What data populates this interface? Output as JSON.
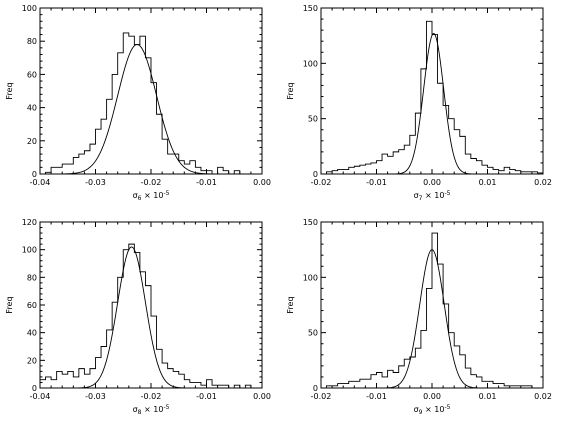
{
  "chart_data": [
    {
      "type": "histogram",
      "xlabel_symbol": "σ",
      "xlabel_sub": "6",
      "xlabel_rest": " × 10",
      "xlabel_exp": "-5",
      "ylabel": "Freq",
      "xlim": [
        -0.04,
        0.0
      ],
      "ylim": [
        0,
        100
      ],
      "xticks": [
        -0.04,
        -0.03,
        -0.02,
        -0.01,
        0.0
      ],
      "xtick_labels": [
        "-0.04",
        "-0.03",
        "-0.02",
        "-0.01",
        "0.00"
      ],
      "yticks": [
        0,
        20,
        40,
        60,
        80,
        100
      ],
      "ytick_labels": [
        "0",
        "20",
        "40",
        "60",
        "80",
        "100"
      ],
      "bin_edges": [
        -0.04,
        -0.039,
        -0.038,
        -0.037,
        -0.036,
        -0.035,
        -0.034,
        -0.033,
        -0.032,
        -0.031,
        -0.03,
        -0.029,
        -0.028,
        -0.027,
        -0.026,
        -0.025,
        -0.024,
        -0.023,
        -0.022,
        -0.021,
        -0.02,
        -0.019,
        -0.018,
        -0.017,
        -0.016,
        -0.015,
        -0.014,
        -0.013,
        -0.012,
        -0.011,
        -0.01,
        -0.009,
        -0.008,
        -0.007,
        -0.006,
        -0.005,
        -0.004,
        -0.003
      ],
      "counts": [
        0,
        1,
        4,
        4,
        6,
        6,
        10,
        12,
        14,
        18,
        27,
        33,
        45,
        60,
        73,
        85,
        83,
        78,
        83,
        70,
        55,
        36,
        21,
        12,
        12,
        8,
        6,
        8,
        4,
        2,
        2,
        0,
        4,
        2,
        0,
        2,
        0
      ],
      "fit": {
        "type": "gaussian",
        "mean": -0.0225,
        "sigma": 0.0035,
        "amplitude": 78
      }
    },
    {
      "type": "histogram",
      "xlabel_symbol": "σ",
      "xlabel_sub": "7",
      "xlabel_rest": " × 10",
      "xlabel_exp": "-5",
      "ylabel": "Freq",
      "xlim": [
        -0.02,
        0.02
      ],
      "ylim": [
        0,
        150
      ],
      "xticks": [
        -0.02,
        -0.01,
        0.0,
        0.01,
        0.02
      ],
      "xtick_labels": [
        "-0.02",
        "-0.01",
        "0.00",
        "0.01",
        "0.02"
      ],
      "yticks": [
        0,
        50,
        100,
        150
      ],
      "ytick_labels": [
        "0",
        "50",
        "100",
        "150"
      ],
      "bin_edges": [
        -0.02,
        -0.019,
        -0.018,
        -0.017,
        -0.016,
        -0.015,
        -0.014,
        -0.013,
        -0.012,
        -0.011,
        -0.01,
        -0.009,
        -0.008,
        -0.007,
        -0.006,
        -0.005,
        -0.004,
        -0.003,
        -0.002,
        -0.001,
        0.0,
        0.001,
        0.002,
        0.003,
        0.004,
        0.005,
        0.006,
        0.007,
        0.008,
        0.009,
        0.01,
        0.011,
        0.012,
        0.013,
        0.014,
        0.015,
        0.016,
        0.017,
        0.018,
        0.019,
        0.02
      ],
      "counts": [
        0,
        2,
        3,
        4,
        4,
        6,
        7,
        8,
        9,
        10,
        12,
        18,
        16,
        20,
        22,
        26,
        35,
        55,
        95,
        138,
        126,
        82,
        62,
        50,
        40,
        34,
        18,
        14,
        12,
        8,
        6,
        4,
        3,
        6,
        4,
        3,
        2,
        2,
        2,
        1
      ],
      "fit": {
        "type": "gaussian",
        "mean": 0.0003,
        "sigma": 0.0018,
        "amplitude": 127
      }
    },
    {
      "type": "histogram",
      "xlabel_symbol": "σ",
      "xlabel_sub": "8",
      "xlabel_rest": " × 10",
      "xlabel_exp": "-5",
      "ylabel": "Freq",
      "xlim": [
        -0.04,
        0.0
      ],
      "ylim": [
        0,
        120
      ],
      "xticks": [
        -0.04,
        -0.03,
        -0.02,
        -0.01,
        0.0
      ],
      "xtick_labels": [
        "-0.04",
        "-0.03",
        "-0.02",
        "-0.01",
        "0.00"
      ],
      "yticks": [
        0,
        20,
        40,
        60,
        80,
        100,
        120
      ],
      "ytick_labels": [
        "0",
        "20",
        "40",
        "60",
        "80",
        "100",
        "120"
      ],
      "bin_edges": [
        -0.04,
        -0.039,
        -0.038,
        -0.037,
        -0.036,
        -0.035,
        -0.034,
        -0.033,
        -0.032,
        -0.031,
        -0.03,
        -0.029,
        -0.028,
        -0.027,
        -0.026,
        -0.025,
        -0.024,
        -0.023,
        -0.022,
        -0.021,
        -0.02,
        -0.019,
        -0.018,
        -0.017,
        -0.016,
        -0.015,
        -0.014,
        -0.013,
        -0.012,
        -0.011,
        -0.01,
        -0.009,
        -0.008,
        -0.007,
        -0.006,
        -0.005,
        -0.004,
        -0.003,
        -0.002,
        -0.001
      ],
      "counts": [
        6,
        8,
        6,
        12,
        10,
        12,
        8,
        14,
        10,
        14,
        22,
        30,
        42,
        62,
        80,
        100,
        104,
        98,
        84,
        74,
        52,
        28,
        18,
        14,
        12,
        10,
        6,
        4,
        4,
        2,
        6,
        2,
        2,
        2,
        0,
        2,
        0,
        2,
        0
      ],
      "fit": {
        "type": "gaussian",
        "mean": -0.0235,
        "sigma": 0.0025,
        "amplitude": 102
      }
    },
    {
      "type": "histogram",
      "xlabel_symbol": "σ",
      "xlabel_sub": "9",
      "xlabel_rest": " × 10",
      "xlabel_exp": "-5",
      "ylabel": "Freq",
      "xlim": [
        -0.02,
        0.02
      ],
      "ylim": [
        0,
        150
      ],
      "xticks": [
        -0.02,
        -0.01,
        0.0,
        0.01,
        0.02
      ],
      "xtick_labels": [
        "-0.02",
        "-0.01",
        "0.00",
        "0.01",
        "0.02"
      ],
      "yticks": [
        0,
        50,
        100,
        150
      ],
      "ytick_labels": [
        "0",
        "50",
        "100",
        "150"
      ],
      "bin_edges": [
        -0.02,
        -0.019,
        -0.018,
        -0.017,
        -0.016,
        -0.015,
        -0.014,
        -0.013,
        -0.012,
        -0.011,
        -0.01,
        -0.009,
        -0.008,
        -0.007,
        -0.006,
        -0.005,
        -0.004,
        -0.003,
        -0.002,
        -0.001,
        0.0,
        0.001,
        0.002,
        0.003,
        0.004,
        0.005,
        0.006,
        0.007,
        0.008,
        0.009,
        0.01,
        0.011,
        0.012,
        0.013,
        0.014,
        0.015,
        0.016,
        0.017,
        0.018,
        0.019,
        0.02
      ],
      "counts": [
        0,
        2,
        2,
        4,
        4,
        6,
        6,
        8,
        8,
        12,
        14,
        10,
        16,
        14,
        20,
        26,
        28,
        36,
        52,
        90,
        140,
        112,
        76,
        50,
        38,
        30,
        18,
        12,
        10,
        6,
        6,
        4,
        4,
        2,
        2,
        2,
        2,
        2,
        0,
        0
      ],
      "fit": {
        "type": "gaussian",
        "mean": 0.0,
        "sigma": 0.0022,
        "amplitude": 125
      }
    }
  ]
}
